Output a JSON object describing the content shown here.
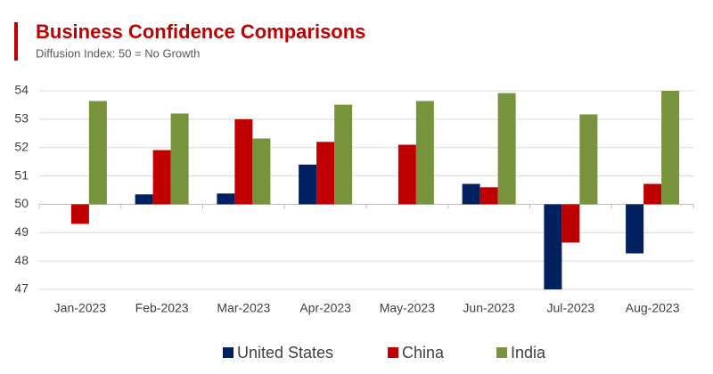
{
  "chart_data": {
    "type": "bar",
    "title": "Business Confidence Comparisons",
    "subtitle": "Diffusion Index: 50 = No Growth",
    "categories": [
      "Jan-2023",
      "Feb-2023",
      "Mar-2023",
      "Apr-2023",
      "May-2023",
      "Jun-2023",
      "Jul-2023",
      "Aug-2023"
    ],
    "series": [
      {
        "name": "United States",
        "color": "#002060",
        "values": [
          null,
          50.35,
          50.38,
          51.4,
          null,
          50.72,
          47.0,
          48.27
        ]
      },
      {
        "name": "China",
        "color": "#c00000",
        "values": [
          49.31,
          51.91,
          53.0,
          52.2,
          52.1,
          50.6,
          48.65,
          50.72
        ]
      },
      {
        "name": "India",
        "color": "#77933c",
        "values": [
          53.64,
          53.2,
          52.32,
          53.51,
          53.64,
          53.92,
          53.17,
          54.0
        ]
      }
    ],
    "baseline": 50,
    "ylim": [
      47,
      54
    ],
    "yticks": [
      47,
      48,
      49,
      50,
      51,
      52,
      53,
      54
    ],
    "grid": true,
    "legend": "bottom"
  }
}
